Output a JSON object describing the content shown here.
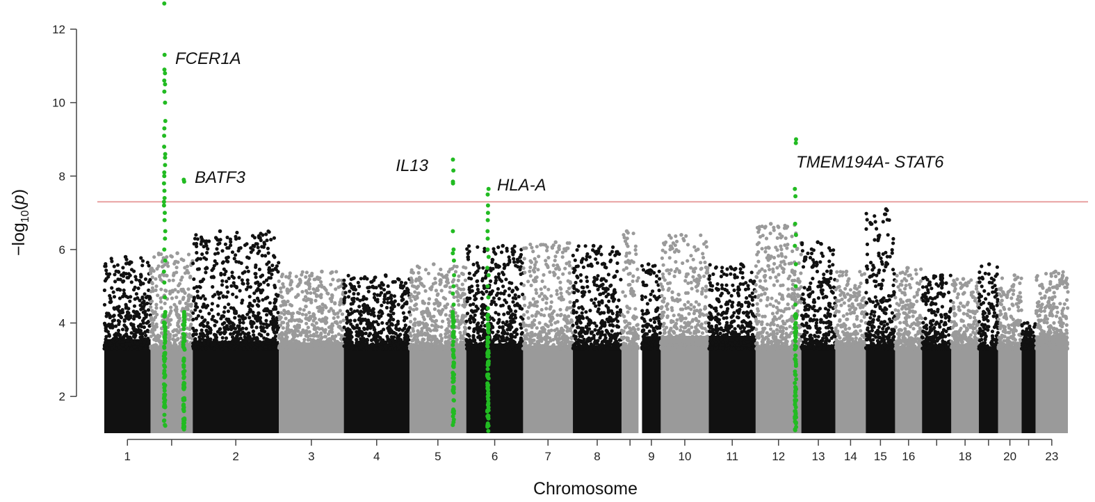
{
  "chart_data": {
    "type": "scatter",
    "subtype": "manhattan",
    "title": "",
    "xlabel": "Chromosome",
    "ylabel": "−log10(p)",
    "ylabel_base": "−log",
    "ylabel_sub": "10",
    "ylabel_paren_open": "(",
    "ylabel_var": "p",
    "ylabel_paren_close": ")",
    "ylim": [
      1,
      12.7
    ],
    "yticks": [
      2,
      4,
      6,
      8,
      10,
      12
    ],
    "grid": false,
    "legend": "none",
    "significance_threshold": 7.3,
    "colors": {
      "odd_chromosome": "#111111",
      "even_chromosome": "#9a9a9a",
      "highlight": "#22bb22",
      "threshold_line": "#e8a0a0",
      "axis": "#444444"
    },
    "x_domain": [
      0,
      100
    ],
    "chromosomes": [
      {
        "label": "1",
        "start": 0.0,
        "end": 7.9,
        "peak": 5.8
      },
      {
        "label": "",
        "start": 7.9,
        "end": 15.1,
        "peak": 5.9
      },
      {
        "label": "2",
        "start": 15.1,
        "end": 29.8,
        "peak": 6.5
      },
      {
        "label": "3",
        "start": 29.8,
        "end": 40.9,
        "peak": 5.4
      },
      {
        "label": "4",
        "start": 40.9,
        "end": 52.1,
        "peak": 5.3
      },
      {
        "label": "5",
        "start": 52.1,
        "end": 61.8,
        "peak": 5.6
      },
      {
        "label": "6",
        "start": 61.8,
        "end": 71.5,
        "peak": 6.1
      },
      {
        "label": "7",
        "start": 71.5,
        "end": 80.0,
        "peak": 6.2
      },
      {
        "label": "8",
        "start": 80.0,
        "end": 88.3,
        "peak": 6.1
      },
      {
        "label": "",
        "start": 88.3,
        "end": 91.2,
        "peak": 6.5
      },
      {
        "label": "9",
        "start": 91.8,
        "end": 95.0,
        "peak": 5.6
      },
      {
        "label": "10",
        "start": 95.0,
        "end": 103.2,
        "peak": 6.4
      },
      {
        "label": "11",
        "start": 103.2,
        "end": 111.2,
        "peak": 5.6
      },
      {
        "label": "12",
        "start": 111.2,
        "end": 119.0,
        "peak": 6.7
      },
      {
        "label": "13",
        "start": 119.0,
        "end": 124.8,
        "peak": 6.2
      },
      {
        "label": "14",
        "start": 124.8,
        "end": 130.0,
        "peak": 5.4
      },
      {
        "label": "15",
        "start": 130.0,
        "end": 135.0,
        "peak": 7.1
      },
      {
        "label": "16",
        "start": 135.0,
        "end": 139.6,
        "peak": 5.5
      },
      {
        "label": "",
        "start": 139.6,
        "end": 144.6,
        "peak": 5.3
      },
      {
        "label": "18",
        "start": 144.6,
        "end": 149.3,
        "peak": 5.2
      },
      {
        "label": "",
        "start": 149.3,
        "end": 152.6,
        "peak": 5.6
      },
      {
        "label": "20",
        "start": 152.6,
        "end": 156.6,
        "peak": 5.3
      },
      {
        "label": "",
        "start": 156.6,
        "end": 159.0,
        "peak": 4.0
      },
      {
        "label": "23",
        "start": 159.0,
        "end": 164.5,
        "peak": 5.4
      }
    ],
    "highlighted_loci": [
      {
        "gene": "FCER1A",
        "chromosome": "1",
        "x": 10.3,
        "max": 12.7,
        "points": [
          12.7,
          11.3,
          10.9,
          10.8,
          10.6,
          10.5,
          10.3,
          10.0,
          9.5,
          9.3,
          9.1,
          8.8,
          8.6,
          8.5,
          8.3,
          8.1,
          8.0,
          7.8,
          7.6,
          7.4,
          7.3,
          7.2,
          7.0,
          6.8,
          6.5,
          6.3,
          6.0,
          5.7,
          5.4,
          5.1,
          4.7,
          4.3,
          3.9,
          3.5,
          3.1,
          2.7,
          2.3,
          1.9,
          1.5,
          1.2
        ]
      },
      {
        "gene": "BATF3",
        "chromosome": "1",
        "x": 13.6,
        "max": 7.9,
        "points": [
          7.9,
          7.85,
          4.3,
          3.6,
          3.0,
          2.8,
          2.5,
          2.2,
          1.9,
          1.6,
          1.4,
          1.2
        ]
      },
      {
        "gene": "IL13",
        "chromosome": "5",
        "x": 59.6,
        "max": 8.45,
        "points": [
          8.45,
          8.15,
          7.85,
          7.8,
          6.5,
          6.0,
          5.9,
          5.7,
          5.3,
          5.0,
          4.8,
          4.5,
          4.3,
          4.0,
          3.7,
          3.4,
          3.1,
          2.8,
          2.5,
          2.2,
          1.9,
          1.6,
          1.3
        ]
      },
      {
        "gene": "HLA-A",
        "chromosome": "6",
        "x": 65.5,
        "max": 7.65,
        "points": [
          7.65,
          7.5,
          7.2,
          7.0,
          6.8,
          6.5,
          6.3,
          6.0,
          5.8,
          5.5,
          5.3,
          5.0,
          4.7,
          4.4,
          4.1,
          3.8,
          3.5,
          3.2,
          2.9,
          2.6,
          2.3,
          2.0,
          1.7,
          1.4,
          1.2
        ]
      },
      {
        "gene": "TMEM194A- STAT6",
        "chromosome": "12",
        "x": 118.0,
        "max": 9.0,
        "points": [
          9.0,
          8.9,
          7.65,
          7.45,
          6.7,
          6.4,
          6.1,
          5.6,
          5.0,
          4.5,
          4.0,
          3.5,
          3.0,
          2.6,
          2.2,
          1.9,
          1.6,
          1.3
        ]
      }
    ]
  }
}
